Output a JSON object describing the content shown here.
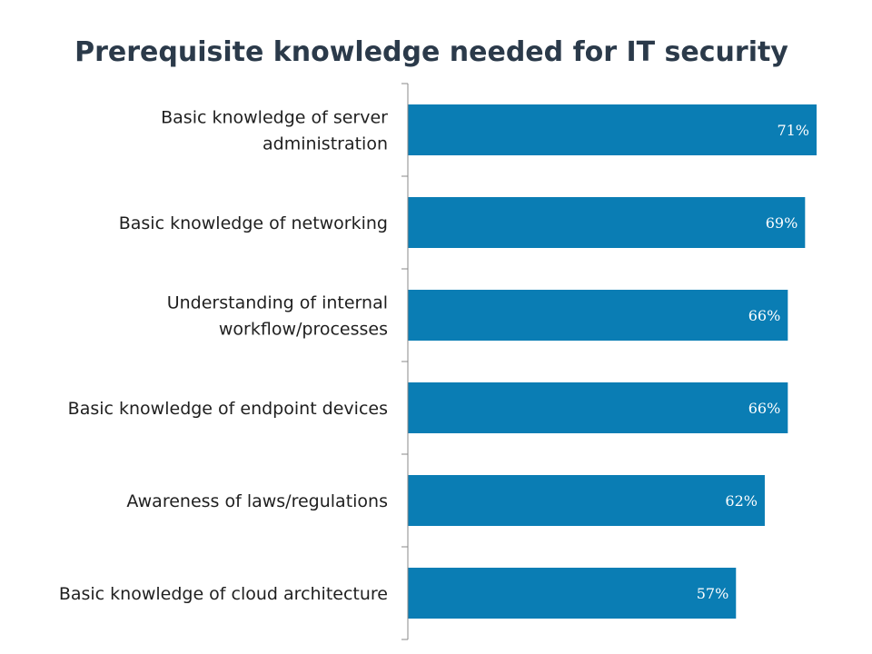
{
  "chart_data": {
    "type": "bar",
    "orientation": "horizontal",
    "title": "Prerequisite knowledge needed for IT security",
    "categories": [
      "Basic knowledge of server administration",
      "Basic knowledge of networking",
      "Understanding of internal workflow/processes",
      "Basic knowledge of endpoint devices",
      "Awareness of laws/regulations",
      "Basic knowledge of cloud architecture"
    ],
    "category_label_lines": [
      [
        "Basic knowledge of server",
        "administration"
      ],
      [
        "Basic knowledge of networking"
      ],
      [
        "Understanding of internal",
        "workflow/processes"
      ],
      [
        "Basic knowledge of endpoint devices"
      ],
      [
        "Awareness of laws/regulations"
      ],
      [
        "Basic knowledge of cloud architecture"
      ]
    ],
    "values": [
      71,
      69,
      66,
      66,
      62,
      57
    ],
    "value_labels": [
      "71%",
      "69%",
      "66%",
      "66%",
      "62%",
      "57%"
    ],
    "value_unit": "%",
    "xlim": [
      0,
      71
    ],
    "xlabel": "",
    "ylabel": "",
    "grid": false,
    "legend": "none",
    "colors": {
      "bar": "#0a7db4",
      "axis": "#888888",
      "label": "#1f1f1f",
      "value_label": "#ffffff",
      "title": "#2b3a4a"
    }
  }
}
